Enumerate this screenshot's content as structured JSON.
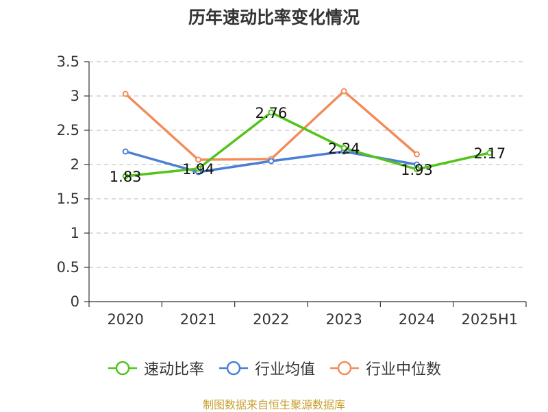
{
  "chart_data": {
    "type": "line",
    "title": "历年速动比率变化情况",
    "categories": [
      "2020",
      "2021",
      "2022",
      "2023",
      "2024",
      "2025H1"
    ],
    "ylim": [
      0,
      3.5
    ],
    "yticks": [
      "0",
      "0.5",
      "1",
      "1.5",
      "2",
      "2.5",
      "3",
      "3.5"
    ],
    "grid": true,
    "legend_position": "bottom",
    "series": [
      {
        "name": "速动比率",
        "color": "#52c41a",
        "values": [
          1.83,
          1.94,
          2.76,
          2.24,
          1.93,
          2.17
        ],
        "labels": [
          "1.83",
          "1.94",
          "2.76",
          "2.24",
          "1.93",
          "2.17"
        ]
      },
      {
        "name": "行业均值",
        "color": "#4a7fd6",
        "values": [
          2.19,
          1.89,
          2.05,
          2.19,
          2.0,
          null
        ]
      },
      {
        "name": "行业中位数",
        "color": "#f28c5a",
        "values": [
          3.03,
          2.07,
          2.08,
          3.07,
          2.15,
          null
        ]
      }
    ]
  },
  "source": "制图数据来自恒生聚源数据库"
}
